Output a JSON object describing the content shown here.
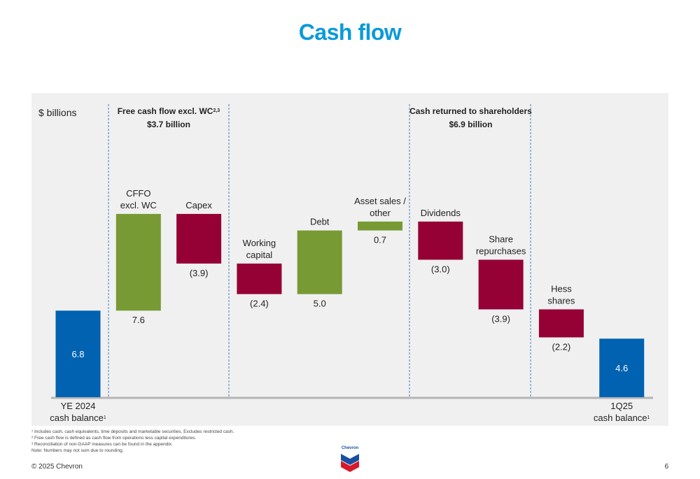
{
  "page": {
    "title": "Cash flow",
    "copyright": "© 2025 Chevron",
    "page_number": "6",
    "logo_text": "Chevron",
    "footnotes": [
      "¹ Includes cash, cash equivalents, time deposits and marketable securities. Excludes restricted cash.",
      "² Free cash flow is defined as cash flow from operations less capital expenditures.",
      "³ Reconciliation of non-GAAP measures can be found in the appendix.",
      "Note: Numbers may not sum due to rounding."
    ]
  },
  "colors": {
    "title": "#0a9ad8",
    "balance": "#0062b1",
    "increase": "#779a35",
    "decrease": "#950035",
    "panel": "#f0f0f0",
    "divider": "#3a7fc4"
  },
  "chart_data": {
    "type": "bar",
    "subtype": "waterfall",
    "unit_label": "$ billions",
    "ylim": [
      0,
      10.5
    ],
    "bars": [
      {
        "label_lines": [
          "YE 2024",
          "cash balance"
        ],
        "label_sup": "1",
        "kind": "total",
        "start": 0,
        "end": 6.8,
        "value_label": "6.8"
      },
      {
        "label_lines": [
          "CFFO",
          "excl. WC"
        ],
        "kind": "increase",
        "start": 6.8,
        "end": 14.4,
        "value_label": "7.6"
      },
      {
        "label_lines": [
          "Capex"
        ],
        "kind": "decrease",
        "start": 14.4,
        "end": 10.5,
        "value_label": "(3.9)"
      },
      {
        "label_lines": [
          "Working",
          "capital"
        ],
        "kind": "decrease",
        "start": 10.5,
        "end": 8.1,
        "value_label": "(2.4)"
      },
      {
        "label_lines": [
          "Debt"
        ],
        "kind": "increase",
        "start": 8.1,
        "end": 13.1,
        "value_label": "5.0"
      },
      {
        "label_lines": [
          "Asset sales /",
          "other"
        ],
        "kind": "increase",
        "start": 13.1,
        "end": 13.8,
        "value_label": "0.7"
      },
      {
        "label_lines": [
          "Dividends"
        ],
        "kind": "decrease",
        "start": 13.8,
        "end": 10.8,
        "value_label": "(3.0)"
      },
      {
        "label_lines": [
          "Share",
          "repurchases"
        ],
        "kind": "decrease",
        "start": 10.8,
        "end": 6.9,
        "value_label": "(3.9)"
      },
      {
        "label_lines": [
          "Hess",
          "shares"
        ],
        "kind": "decrease",
        "start": 6.9,
        "end": 4.7,
        "value_label": "(2.2)"
      },
      {
        "label_lines": [
          "1Q25",
          "cash balance"
        ],
        "label_sup": "1",
        "kind": "total",
        "start": 0,
        "end": 4.6,
        "value_label": "4.6"
      }
    ],
    "groups": [
      {
        "title": "Free cash flow excl. WC",
        "title_sup": "2,3",
        "subtitle": "$3.7 billion",
        "from_bar": 1,
        "to_bar": 2
      },
      {
        "title": "Cash returned to shareholders",
        "title_sup": "",
        "subtitle": "$6.9 billion",
        "from_bar": 6,
        "to_bar": 7
      }
    ]
  }
}
